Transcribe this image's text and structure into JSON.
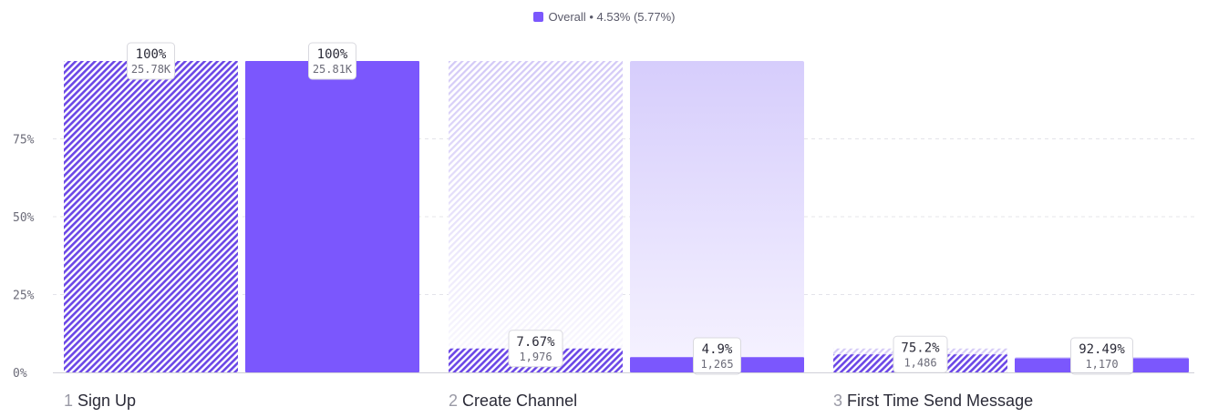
{
  "legend": {
    "series_name": "Overall",
    "summary": "• 4.53% (5.77%)",
    "color": "#7b57fd"
  },
  "chart_data": {
    "type": "bar",
    "categories": [
      "Sign Up",
      "Create Channel",
      "First Time Send Message"
    ],
    "step_numbers": [
      "1",
      "2",
      "3"
    ],
    "ylim": [
      0,
      100
    ],
    "y_ticks": [
      {
        "value": 0,
        "label": "0%"
      },
      {
        "value": 25,
        "label": "25%"
      },
      {
        "value": 50,
        "label": "50%"
      },
      {
        "value": 75,
        "label": "75%"
      }
    ],
    "grid": true,
    "series": [
      {
        "name": "",
        "style": "hatched",
        "values": [
          100,
          7.67,
          5.77
        ],
        "previous_values": [
          100,
          100,
          7.67
        ],
        "labels": [
          {
            "pct": "100%",
            "count": "25.78K"
          },
          {
            "pct": "7.67%",
            "count": "1,976"
          },
          {
            "pct": "75.2%",
            "count": "1,486"
          }
        ]
      },
      {
        "name": "",
        "style": "solid",
        "values": [
          100,
          4.9,
          4.53
        ],
        "previous_values": [
          100,
          100,
          4.9
        ],
        "labels": [
          {
            "pct": "100%",
            "count": "25.81K"
          },
          {
            "pct": "4.9%",
            "count": "1,265"
          },
          {
            "pct": "92.49%",
            "count": "1,170"
          }
        ]
      }
    ]
  }
}
